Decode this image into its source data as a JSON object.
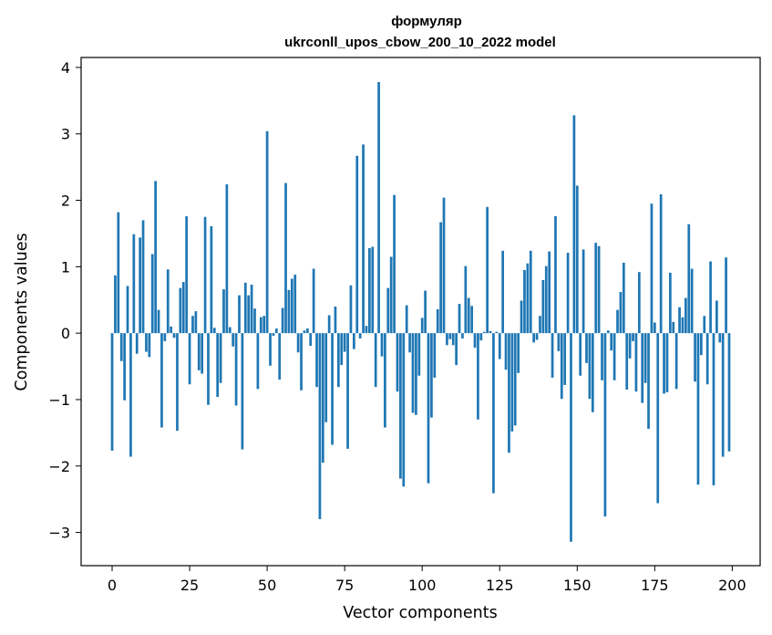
{
  "chart_data": {
    "type": "bar",
    "title_line1": "формуляр",
    "title_line2": "ukrconll_upos_cbow_200_10_2022 model",
    "xlabel": "Vector components",
    "ylabel": "Components values",
    "xlim": [
      -10,
      209
    ],
    "ylim": [
      -3.5,
      4.15
    ],
    "x_ticks": [
      0,
      25,
      50,
      75,
      100,
      125,
      150,
      175,
      200
    ],
    "y_ticks": [
      -3,
      -2,
      -1,
      0,
      1,
      2,
      3,
      4
    ],
    "y_tick_labels": [
      "−3",
      "−2",
      "−1",
      "0",
      "1",
      "2",
      "3",
      "4"
    ],
    "grid": false,
    "bar_color": "#1f77b4",
    "values": [
      -1.77,
      0.87,
      1.82,
      -0.42,
      -1.01,
      0.71,
      -1.86,
      1.49,
      -0.31,
      1.44,
      1.7,
      -0.28,
      -0.36,
      1.19,
      2.29,
      0.35,
      -1.42,
      -0.12,
      0.96,
      0.1,
      -0.07,
      -1.47,
      0.68,
      0.77,
      1.76,
      -0.77,
      0.26,
      0.33,
      -0.56,
      -0.61,
      1.75,
      -1.08,
      1.61,
      0.08,
      -0.96,
      -0.75,
      0.66,
      2.24,
      0.09,
      -0.2,
      -1.09,
      0.57,
      -1.75,
      0.76,
      0.57,
      0.73,
      0.37,
      -0.84,
      0.24,
      0.26,
      3.04,
      -0.49,
      -0.04,
      0.07,
      -0.7,
      0.38,
      2.26,
      0.65,
      0.82,
      0.88,
      -0.29,
      -0.86,
      0.04,
      0.07,
      -0.19,
      0.97,
      -0.81,
      -2.8,
      -1.95,
      -1.34,
      0.27,
      -1.68,
      0.4,
      -0.81,
      -0.48,
      -0.28,
      -1.74,
      0.72,
      -0.24,
      2.67,
      -0.08,
      2.84,
      0.11,
      1.28,
      1.3,
      -0.81,
      3.78,
      -0.35,
      -1.42,
      0.68,
      1.15,
      2.08,
      -0.88,
      -2.19,
      -2.31,
      0.42,
      -0.29,
      -1.2,
      -1.23,
      -0.64,
      0.23,
      0.64,
      -2.26,
      -1.27,
      -0.67,
      0.36,
      1.67,
      2.04,
      -0.18,
      -0.09,
      -0.18,
      -0.48,
      0.44,
      -0.08,
      1.01,
      0.53,
      0.41,
      -0.22,
      -1.3,
      -0.11,
      0.02,
      1.9,
      0.03,
      -2.41,
      0.02,
      -0.39,
      1.24,
      -0.55,
      -1.8,
      -1.48,
      -1.39,
      -0.6,
      0.49,
      0.95,
      1.05,
      1.24,
      -0.14,
      -0.1,
      0.26,
      0.8,
      1.01,
      1.23,
      -0.67,
      1.76,
      -0.27,
      -0.99,
      -0.78,
      1.21,
      -3.14,
      3.28,
      2.22,
      -0.64,
      1.26,
      -0.45,
      -0.99,
      -1.19,
      1.36,
      1.31,
      -0.71,
      -2.76,
      0.04,
      -0.26,
      -0.71,
      0.35,
      0.62,
      1.06,
      -0.85,
      -0.38,
      -0.12,
      -0.88,
      0.92,
      -1.05,
      -0.75,
      -1.44,
      1.95,
      0.16,
      -2.56,
      2.09,
      -0.91,
      -0.89,
      0.91,
      0.17,
      -0.84,
      0.39,
      0.24,
      0.53,
      1.64,
      0.97,
      -0.73,
      -2.28,
      -0.33,
      0.26,
      -0.77,
      1.08,
      -2.29,
      0.49,
      -0.14,
      -1.86,
      1.14,
      -1.78
    ]
  }
}
